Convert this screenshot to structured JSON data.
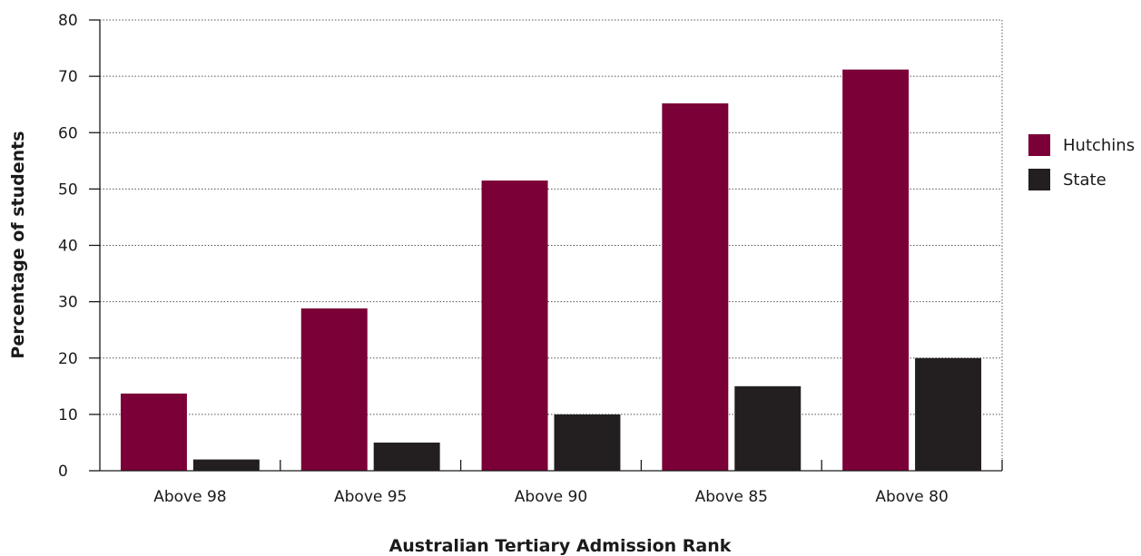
{
  "chart_data": {
    "type": "bar",
    "title": "",
    "xlabel": "Australian Tertiary Admission Rank",
    "ylabel": "Percentage of students",
    "categories": [
      "Above 98",
      "Above 95",
      "Above 90",
      "Above 85",
      "Above 80"
    ],
    "series": [
      {
        "name": "Hutchins",
        "color": "#7a0037",
        "values": [
          13.7,
          28.8,
          51.5,
          65.2,
          71.2
        ]
      },
      {
        "name": "State",
        "color": "#231f20",
        "values": [
          2,
          5,
          10,
          15,
          20
        ]
      }
    ],
    "ylim": [
      0,
      80
    ],
    "yticks": [
      0,
      10,
      20,
      30,
      40,
      50,
      60,
      70,
      80
    ],
    "grid": true,
    "legend_position": "right"
  }
}
